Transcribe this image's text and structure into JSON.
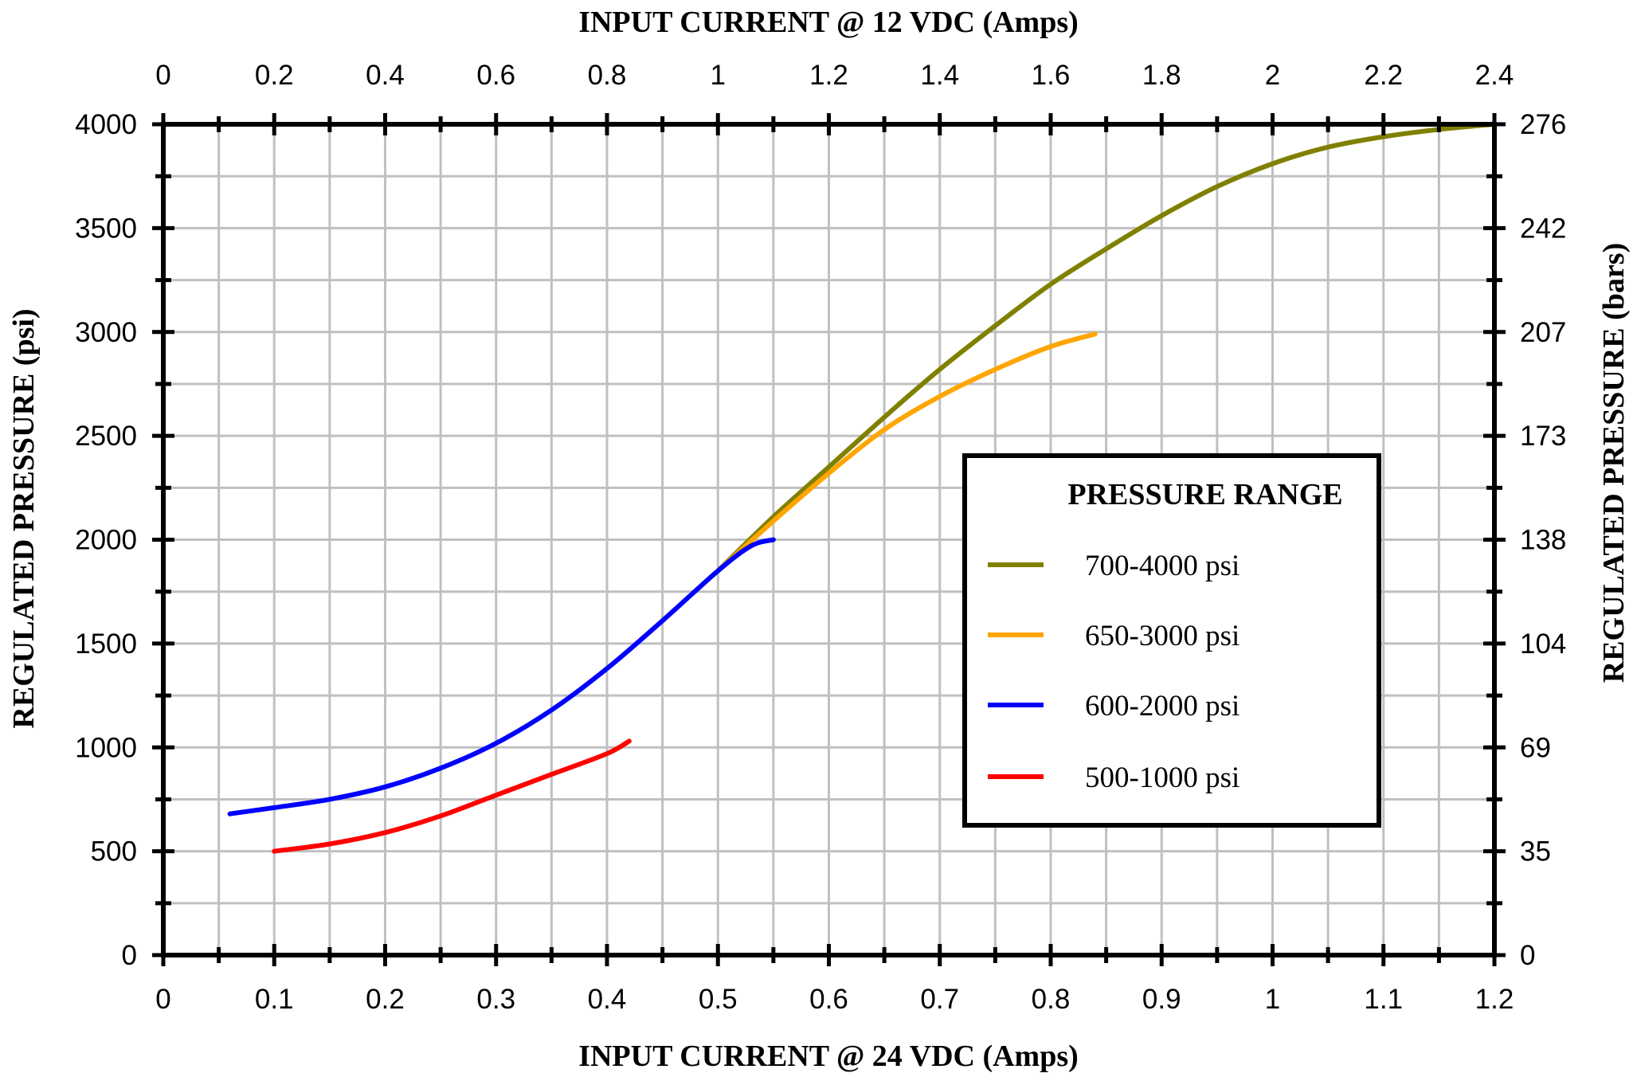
{
  "chart_data": {
    "type": "line",
    "x_bottom": {
      "label": "INPUT CURRENT @ 24 VDC (Amps)",
      "range": [
        0,
        1.2
      ],
      "ticks": [
        "0",
        "0.1",
        "0.2",
        "0.3",
        "0.4",
        "0.5",
        "0.6",
        "0.7",
        "0.8",
        "0.9",
        "1",
        "1.1",
        "1.2"
      ]
    },
    "x_top": {
      "label": "INPUT CURRENT @ 12 VDC (Amps)",
      "range": [
        0,
        2.4
      ],
      "ticks": [
        "0",
        "0.2",
        "0.4",
        "0.6",
        "0.8",
        "1",
        "1.2",
        "1.4",
        "1.6",
        "1.8",
        "2",
        "2.2",
        "2.4"
      ]
    },
    "y_left": {
      "label": "REGULATED PRESSURE (psi)",
      "range": [
        0,
        4000
      ],
      "ticks": [
        "0",
        "500",
        "1000",
        "1500",
        "2000",
        "2500",
        "3000",
        "3500",
        "4000"
      ]
    },
    "y_right": {
      "label": "REGULATED PRESSURE (bars)",
      "ticks": [
        "0",
        "35",
        "69",
        "104",
        "138",
        "173",
        "207",
        "242",
        "276"
      ]
    },
    "grid": true,
    "legend": {
      "title": "PRESSURE RANGE",
      "placement": "center-right"
    },
    "series": [
      {
        "name": "700-4000 psi",
        "color": "#808000",
        "points": [
          [
            0.5,
            1850
          ],
          [
            0.55,
            2110
          ],
          [
            0.6,
            2350
          ],
          [
            0.65,
            2590
          ],
          [
            0.7,
            2820
          ],
          [
            0.75,
            3030
          ],
          [
            0.8,
            3230
          ],
          [
            0.85,
            3400
          ],
          [
            0.9,
            3560
          ],
          [
            0.95,
            3700
          ],
          [
            1.0,
            3810
          ],
          [
            1.05,
            3890
          ],
          [
            1.1,
            3940
          ],
          [
            1.15,
            3975
          ],
          [
            1.2,
            4000
          ]
        ]
      },
      {
        "name": "650-3000 psi",
        "color": "#ffa500",
        "points": [
          [
            0.5,
            1850
          ],
          [
            0.55,
            2090
          ],
          [
            0.6,
            2320
          ],
          [
            0.65,
            2530
          ],
          [
            0.7,
            2690
          ],
          [
            0.75,
            2820
          ],
          [
            0.8,
            2930
          ],
          [
            0.84,
            2990
          ]
        ]
      },
      {
        "name": "600-2000 psi",
        "color": "#0000ff",
        "points": [
          [
            0.06,
            680
          ],
          [
            0.1,
            710
          ],
          [
            0.15,
            750
          ],
          [
            0.2,
            810
          ],
          [
            0.25,
            900
          ],
          [
            0.3,
            1020
          ],
          [
            0.35,
            1180
          ],
          [
            0.4,
            1380
          ],
          [
            0.45,
            1610
          ],
          [
            0.5,
            1850
          ],
          [
            0.53,
            1970
          ],
          [
            0.55,
            2000
          ]
        ]
      },
      {
        "name": "500-1000 psi",
        "color": "#ff0000",
        "points": [
          [
            0.1,
            500
          ],
          [
            0.15,
            535
          ],
          [
            0.2,
            590
          ],
          [
            0.25,
            670
          ],
          [
            0.3,
            770
          ],
          [
            0.35,
            870
          ],
          [
            0.4,
            970
          ],
          [
            0.42,
            1030
          ]
        ]
      }
    ]
  }
}
